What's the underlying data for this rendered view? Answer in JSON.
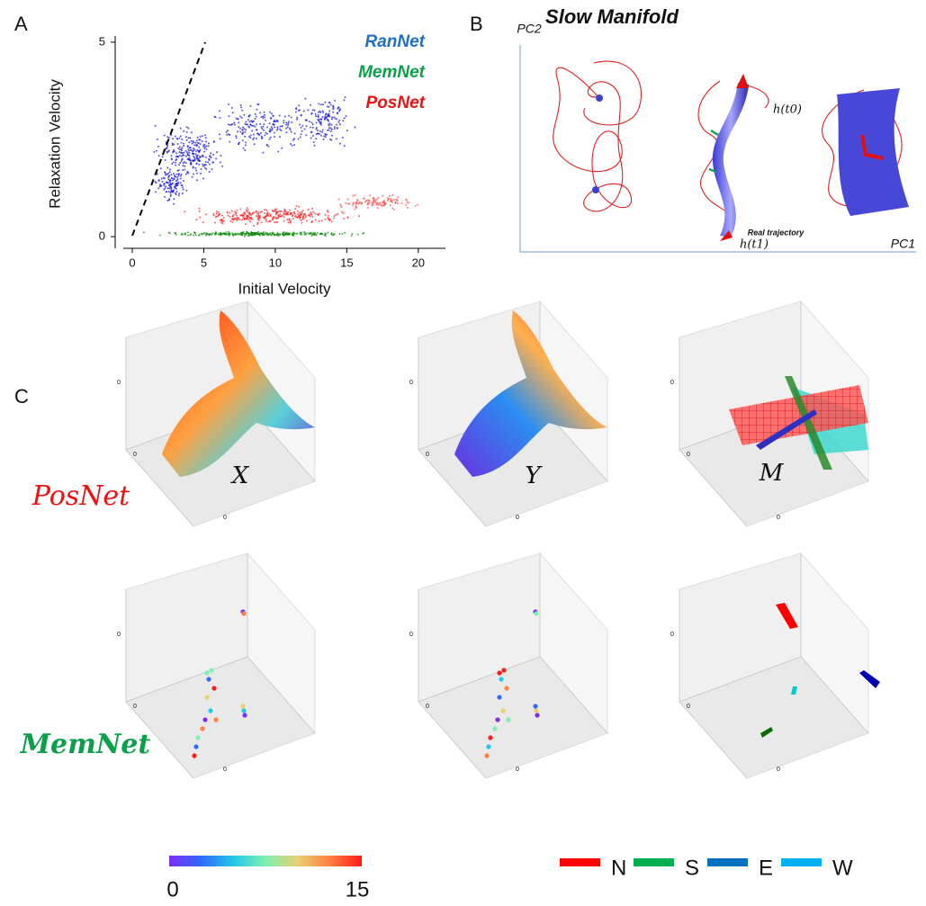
{
  "panel_a": {
    "label": "A",
    "x_label": "Initial Velocity",
    "y_label": "Relaxation Velocity",
    "xlim": [
      -0.63,
      21.9
    ],
    "ylim": [
      -0.3,
      5.16
    ],
    "xticks": [
      0,
      5,
      10,
      15,
      20
    ],
    "yticks": [
      0,
      5
    ],
    "legend": [
      {
        "name": "RanNet",
        "color": "#1f6fc4"
      },
      {
        "name": "MemNet",
        "color": "#0aa04a"
      },
      {
        "name": "PosNet",
        "color": "#f01010"
      }
    ]
  },
  "panel_b": {
    "label": "B",
    "title": "Slow Manifold",
    "y_axis": "PC2",
    "x_axis": "PC1",
    "annotations": [
      "h(t0)",
      "Real trajectory",
      "h(t1)"
    ]
  },
  "panel_c": {
    "label": "C",
    "columns": [
      "X",
      "Y",
      "M"
    ],
    "rows": [
      {
        "name": "PosNet",
        "color": "#f01010"
      },
      {
        "name": "MemNet",
        "color": "#0aa04a"
      }
    ],
    "axis_tick": "0",
    "colorbar": {
      "ticks": [
        0,
        15
      ],
      "colors": [
        "#7b2ff7",
        "#2f6bf7",
        "#22c8e8",
        "#7ef0b0",
        "#e8d070",
        "#ff8040",
        "#ff1a1a"
      ]
    },
    "legend": [
      {
        "name": "N",
        "color": "#ff0000"
      },
      {
        "name": "S",
        "color": "#00b050"
      },
      {
        "name": "E",
        "color": "#0070c0"
      },
      {
        "name": "W",
        "color": "#00b0f0"
      }
    ]
  }
}
